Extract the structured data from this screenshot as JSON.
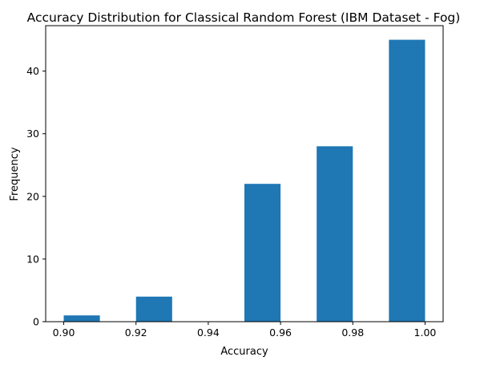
{
  "chart_data": {
    "type": "bar",
    "title": "Accuracy Distribution for Classical Random Forest (IBM Dataset - Fog)",
    "xlabel": "Accuracy",
    "ylabel": "Frequency",
    "xlim": [
      0.895,
      1.005
    ],
    "ylim": [
      0,
      47.25
    ],
    "grid": false,
    "bar_color": "#1f77b4",
    "bins": [
      {
        "start": 0.9,
        "end": 0.91,
        "count": 1
      },
      {
        "start": 0.91,
        "end": 0.92,
        "count": 0
      },
      {
        "start": 0.92,
        "end": 0.93,
        "count": 4
      },
      {
        "start": 0.93,
        "end": 0.94,
        "count": 0
      },
      {
        "start": 0.94,
        "end": 0.95,
        "count": 0
      },
      {
        "start": 0.95,
        "end": 0.96,
        "count": 22
      },
      {
        "start": 0.96,
        "end": 0.97,
        "count": 0
      },
      {
        "start": 0.97,
        "end": 0.98,
        "count": 28
      },
      {
        "start": 0.98,
        "end": 0.99,
        "count": 0
      },
      {
        "start": 0.99,
        "end": 1.0,
        "count": 45
      }
    ],
    "x_ticks": [
      0.9,
      0.92,
      0.94,
      0.96,
      0.98,
      1.0
    ],
    "x_tick_labels": [
      "0.90",
      "0.92",
      "0.94",
      "0.96",
      "0.98",
      "1.00"
    ],
    "y_ticks": [
      0,
      10,
      20,
      30,
      40
    ],
    "y_tick_labels": [
      "0",
      "10",
      "20",
      "30",
      "40"
    ]
  }
}
